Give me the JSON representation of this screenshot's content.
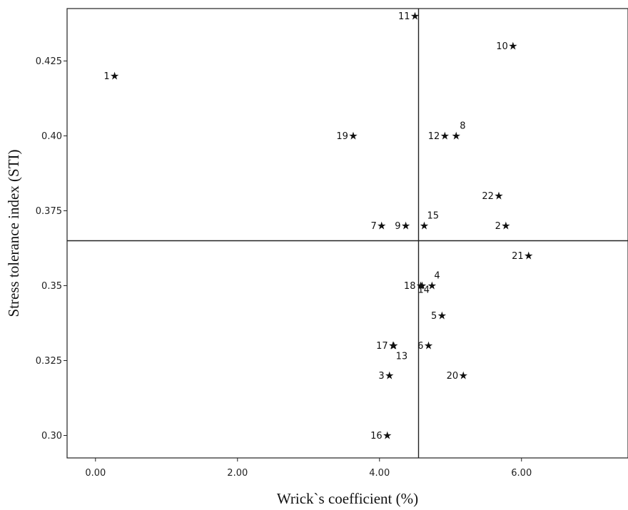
{
  "chart_data": {
    "type": "scatter",
    "title": "",
    "xlabel": "Wrick`s coefficient (%)",
    "ylabel": "Stress tolerance index (STI)",
    "xlim": [
      -0.4,
      7.5
    ],
    "ylim": [
      0.2925,
      0.4425
    ],
    "x_ticks": [
      0.0,
      2.0,
      4.0,
      6.0
    ],
    "x_tick_labels": [
      "0.00",
      "2.00",
      "4.00",
      "6.00"
    ],
    "y_ticks": [
      0.3,
      0.325,
      0.35,
      0.375,
      0.4,
      0.425
    ],
    "y_tick_labels": [
      "0.30",
      "0.325",
      "0.35",
      "0.375",
      "0.40",
      "0.425"
    ],
    "reference_lines": {
      "x": 4.55,
      "y": 0.365
    },
    "grid": false,
    "legend": "none",
    "marker": "star",
    "points": [
      {
        "label": "1",
        "x": 0.27,
        "y": 0.42
      },
      {
        "label": "2",
        "x": 5.78,
        "y": 0.37
      },
      {
        "label": "3",
        "x": 4.14,
        "y": 0.32
      },
      {
        "label": "4",
        "x": 4.74,
        "y": 0.35
      },
      {
        "label": "5",
        "x": 4.88,
        "y": 0.34
      },
      {
        "label": "6",
        "x": 4.69,
        "y": 0.33
      },
      {
        "label": "7",
        "x": 4.03,
        "y": 0.37
      },
      {
        "label": "8",
        "x": 5.08,
        "y": 0.4
      },
      {
        "label": "9",
        "x": 4.37,
        "y": 0.37
      },
      {
        "label": "10",
        "x": 5.88,
        "y": 0.43
      },
      {
        "label": "11",
        "x": 4.5,
        "y": 0.44
      },
      {
        "label": "12",
        "x": 4.92,
        "y": 0.4
      },
      {
        "label": "13",
        "x": 4.2,
        "y": 0.33
      },
      {
        "label": "14",
        "x": 4.6,
        "y": 0.35
      },
      {
        "label": "15",
        "x": 4.63,
        "y": 0.37
      },
      {
        "label": "16",
        "x": 4.11,
        "y": 0.3
      },
      {
        "label": "17",
        "x": 4.19,
        "y": 0.33
      },
      {
        "label": "18",
        "x": 4.58,
        "y": 0.35
      },
      {
        "label": "19",
        "x": 3.63,
        "y": 0.4
      },
      {
        "label": "20",
        "x": 5.18,
        "y": 0.32
      },
      {
        "label": "21",
        "x": 6.1,
        "y": 0.36
      },
      {
        "label": "22",
        "x": 5.68,
        "y": 0.38
      }
    ]
  }
}
